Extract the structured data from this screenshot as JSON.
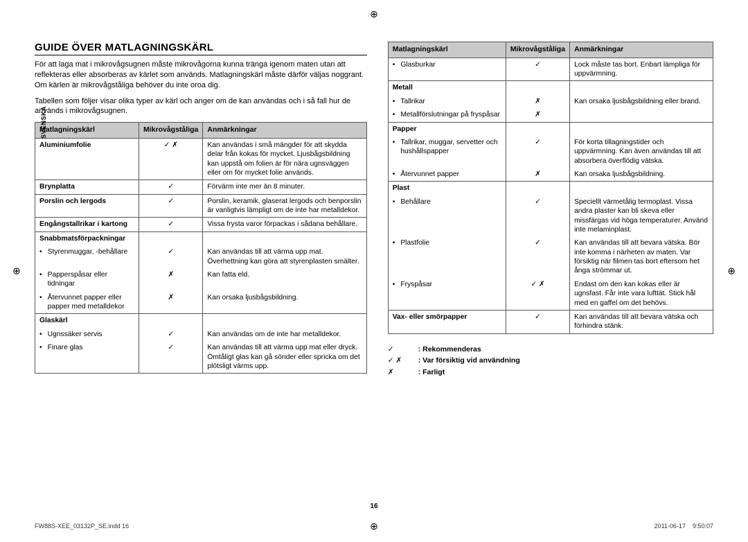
{
  "meta": {
    "lang_tab": "SVENSKA",
    "page_number": "16",
    "footer_left": "FW88S-XEE_03132P_SE.indd   16",
    "footer_date": "2011-06-17",
    "footer_time": "9:50:07"
  },
  "title": "GUIDE ÖVER MATLAGNINGSKÄRL",
  "intro1": "För att laga mat i mikrovågsugnen måste mikrovågorna kunna tränga igenom maten utan att reflekteras eller absorberas av kärlet som används. Matlagningskärl måste därför väljas noggrant. Om kärlen är mikrovågståliga behöver du inte oroa dig.",
  "intro2": "Tabellen som följer visar olika typer av kärl och anger om de kan användas och i så fall hur de används i mikrovågsugnen.",
  "headers": {
    "c1": "Matlagningskärl",
    "c2": "Mikrovågståliga",
    "c3": "Anmärkningar"
  },
  "symbols": {
    "yes": "✓",
    "no": "✗",
    "both": "✓ ✗"
  },
  "left_rows": [
    {
      "c1": "Aluminiumfolie",
      "bold": true,
      "c2": "both",
      "c3": "Kan användas i små mängder för att skydda delar från kokas för mycket. Ljusbågsbildning kan uppstå om folien är för nära ugnsväggen eller om för mycket folie används.",
      "sep": true
    },
    {
      "c1": "Brynplatta",
      "bold": true,
      "c2": "yes",
      "c3": "Förvärm inte mer än 8 minuter.",
      "sep": true
    },
    {
      "c1": "Porslin och lergods",
      "bold": true,
      "c2": "yes",
      "c3": "Porslin, keramik, glaserat lergods och benporslin är vanligtvis lämpligt om de inte har metalldekor.",
      "sep": true
    },
    {
      "c1": "Engångstallrikar i kartong",
      "bold": true,
      "c2": "yes",
      "c3": "Vissa frysta varor förpackas i sådana behållare.",
      "sep": true
    },
    {
      "c1": "Snabbmatsförpackningar",
      "bold": true,
      "c2": "",
      "c3": ""
    },
    {
      "c1": "Styrenmuggar, -behållare",
      "bullet": true,
      "c2": "yes",
      "c3": "Kan användas till att värma upp mat. Överhettning kan göra att styrenplasten smälter."
    },
    {
      "c1": "Papperspåsar eller tidningar",
      "bullet": true,
      "c2": "no",
      "c3": "Kan fatta eld."
    },
    {
      "c1": "Återvunnet papper eller papper med metalldekor",
      "bullet": true,
      "c2": "no",
      "c3": "Kan orsaka ljusbågsbildning.",
      "sep": true
    },
    {
      "c1": "Glaskärl",
      "bold": true,
      "c2": "",
      "c3": ""
    },
    {
      "c1": "Ugnssäker servis",
      "bullet": true,
      "c2": "yes",
      "c3": "Kan användas om de inte har metalldekor."
    },
    {
      "c1": "Finare glas",
      "bullet": true,
      "c2": "yes",
      "c3": "Kan användas till att värma upp mat eller dryck. Ömtåligt glas kan gå sönder eller spricka om det plötsligt värms upp."
    }
  ],
  "right_rows": [
    {
      "c1": "Glasburkar",
      "bullet": true,
      "c2": "yes",
      "c3": "Lock måste tas bort. Enbart lämpliga för uppvärmning.",
      "sep": true
    },
    {
      "c1": "Metall",
      "bold": true,
      "c2": "",
      "c3": ""
    },
    {
      "c1": "Tallrikar",
      "bullet": true,
      "c2": "no",
      "c3": "Kan orsaka ljusbågsbildning eller brand."
    },
    {
      "c1": "Metallförslutningar på fryspåsar",
      "bullet": true,
      "c2": "no",
      "c3": "",
      "sep": true
    },
    {
      "c1": "Papper",
      "bold": true,
      "c2": "",
      "c3": ""
    },
    {
      "c1": "Tallrikar, muggar, servetter och hushållspapper",
      "bullet": true,
      "c2": "yes",
      "c3": "För korta tillagningstider och uppvärmning. Kan även användas till att absorbera överflödig vätska."
    },
    {
      "c1": "Återvunnet papper",
      "bullet": true,
      "c2": "no",
      "c3": "Kan orsaka ljusbågsbildning.",
      "sep": true
    },
    {
      "c1": "Plast",
      "bold": true,
      "c2": "",
      "c3": ""
    },
    {
      "c1": "Behållare",
      "bullet": true,
      "c2": "yes",
      "c3": "Speciellt värmetålig termoplast. Vissa andra plaster kan bli skeva eller missfärgas vid höga temperaturer. Använd inte melaminplast."
    },
    {
      "c1": "Plastfolie",
      "bullet": true,
      "c2": "yes",
      "c3": "Kan användas till att bevara vätska. Bör inte komma i närheten av maten. Var försiktig när filmen tas bort eftersom het ånga strömmar ut."
    },
    {
      "c1": "Fryspåsar",
      "bullet": true,
      "c2": "both",
      "c3": "Endast om den kan kokas eller är ugnsfast. Får inte vara lufttät. Stick hål med en gaffel om det behövs.",
      "sep": true
    },
    {
      "c1": "Vax- eller smörpapper",
      "bold": true,
      "c2": "yes",
      "c3": "Kan användas till att bevara vätska och förhindra stänk."
    }
  ],
  "legend": [
    {
      "sym": "yes",
      "txt": ": Rekommenderas"
    },
    {
      "sym": "both",
      "txt": ": Var försiktig vid användning"
    },
    {
      "sym": "no",
      "txt": ": Farligt"
    }
  ]
}
